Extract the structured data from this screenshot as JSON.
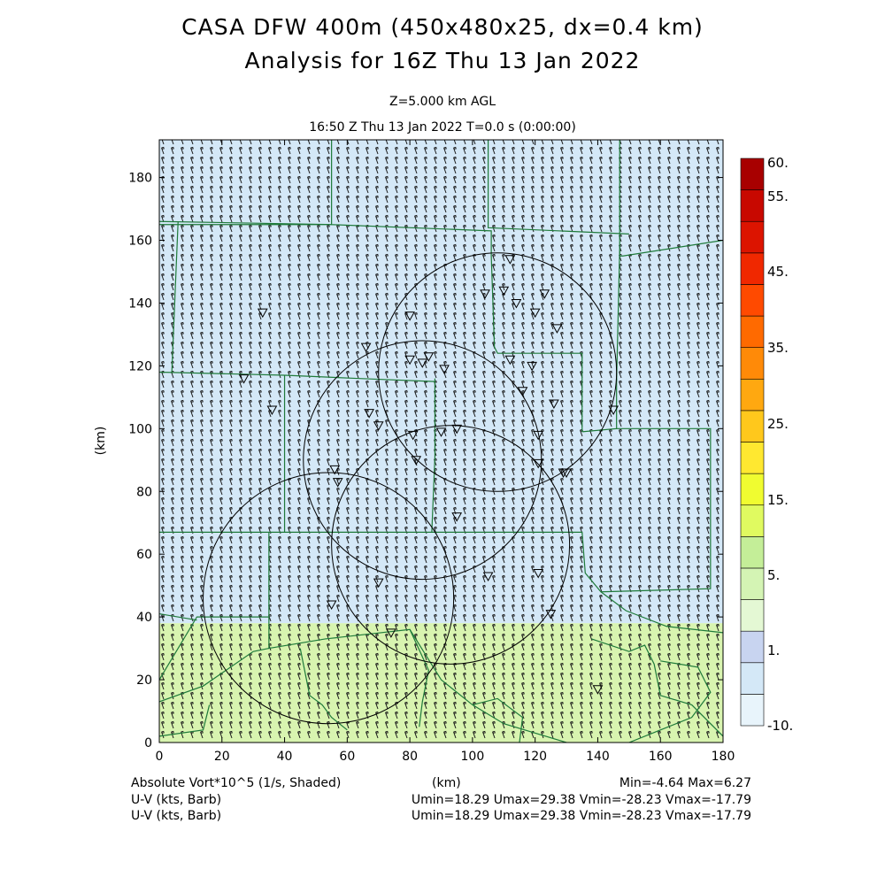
{
  "header": {
    "title_line1": "CASA DFW 400m (450x480x25, dx=0.4 km)",
    "title_line2": "Analysis for 16Z Thu 13 Jan 2022",
    "level": "Z=5.000 km AGL",
    "time": "16:50 Z Thu 13 Jan 2022    T=0.0 s (0:00:00)"
  },
  "footer": {
    "field_label": "Absolute Vort*10^5 (1/s, Shaded)",
    "xunit": "(km)",
    "minmax": "Min=-4.64 Max=6.27",
    "uv_label_1": "U-V (kts, Barb)",
    "uv_stats_1": "Umin=18.29 Umax=29.38 Vmin=-28.23 Vmax=-17.79",
    "uv_label_2": "U-V (kts, Barb)",
    "uv_stats_2": "Umin=18.29 Umax=29.38 Vmin=-28.23 Vmax=-17.79"
  },
  "chart_data": {
    "type": "heatmap",
    "xlabel": "",
    "ylabel": "(km)",
    "xlim": [
      0,
      180
    ],
    "ylim": [
      0,
      192
    ],
    "x_ticks": [
      "0",
      "20",
      "40",
      "60",
      "80",
      "100",
      "120",
      "140",
      "160",
      "180"
    ],
    "y_ticks": [
      "0",
      "20",
      "40",
      "60",
      "80",
      "100",
      "120",
      "140",
      "160",
      "180"
    ],
    "colorbar": {
      "levels": [
        "-10.",
        "1.",
        "5.",
        "15.",
        "25.",
        "35.",
        "45.",
        "55.",
        "60."
      ],
      "colors": [
        "#e8f4fb",
        "#d4e8f7",
        "#c8d4f0",
        "#e4f8d4",
        "#d4f4b4",
        "#c4ee98",
        "#e0fa60",
        "#f0fc30",
        "#ffe830",
        "#ffc81c",
        "#ffa810",
        "#ff8a08",
        "#ff6a00",
        "#ff4a00",
        "#f02800",
        "#dc1400",
        "#c80800",
        "#a80000"
      ]
    },
    "shading": [
      {
        "y_from": 38,
        "y_to": 192,
        "color": "#d4e8f7"
      },
      {
        "y_from": 0,
        "y_to": 38,
        "color": "#d8f4b0"
      }
    ],
    "wind": {
      "u_range": [
        18.29,
        29.38
      ],
      "v_range": [
        -28.23,
        -17.79
      ]
    },
    "radar_rings": [
      {
        "cx": 108,
        "cy": 118,
        "r": 38
      },
      {
        "cx": 84,
        "cy": 90,
        "r": 38
      },
      {
        "cx": 93,
        "cy": 63,
        "r": 38
      },
      {
        "cx": 54,
        "cy": 46,
        "r": 40
      }
    ],
    "station_markers": [
      [
        112,
        154
      ],
      [
        104,
        143
      ],
      [
        110,
        144
      ],
      [
        114,
        140
      ],
      [
        120,
        137
      ],
      [
        123,
        143
      ],
      [
        127,
        132
      ],
      [
        80,
        136
      ],
      [
        33,
        137
      ],
      [
        66,
        126
      ],
      [
        80,
        122
      ],
      [
        84,
        121
      ],
      [
        86,
        123
      ],
      [
        91,
        119
      ],
      [
        112,
        122
      ],
      [
        119,
        120
      ],
      [
        27,
        116
      ],
      [
        36,
        106
      ],
      [
        67,
        105
      ],
      [
        70,
        101
      ],
      [
        116,
        112
      ],
      [
        126,
        108
      ],
      [
        145,
        106
      ],
      [
        81,
        98
      ],
      [
        90,
        99
      ],
      [
        95,
        100
      ],
      [
        121,
        98
      ],
      [
        82,
        90
      ],
      [
        121,
        89
      ],
      [
        129,
        86
      ],
      [
        130,
        86
      ],
      [
        56,
        87
      ],
      [
        57,
        83
      ],
      [
        95,
        72
      ],
      [
        55,
        44
      ],
      [
        70,
        51
      ],
      [
        105,
        53
      ],
      [
        121,
        54
      ],
      [
        125,
        41
      ],
      [
        74,
        35
      ],
      [
        140,
        17
      ]
    ],
    "boundaries": [
      [
        [
          0,
          166
        ],
        [
          55,
          165
        ],
        [
          0,
          165
        ]
      ],
      [
        [
          6,
          166
        ],
        [
          4,
          118
        ]
      ],
      [
        [
          0,
          118
        ],
        [
          40,
          117
        ]
      ],
      [
        [
          55,
          192
        ],
        [
          55,
          165
        ],
        [
          106,
          163
        ],
        [
          106,
          155
        ],
        [
          107,
          126
        ],
        [
          108,
          124
        ],
        [
          135,
          124
        ],
        [
          135,
          116
        ],
        [
          135,
          99
        ]
      ],
      [
        [
          40,
          117
        ],
        [
          40,
          67
        ],
        [
          38,
          67
        ]
      ],
      [
        [
          38,
          67
        ],
        [
          0,
          67
        ]
      ],
      [
        [
          40,
          117
        ],
        [
          63,
          116
        ],
        [
          88,
          115
        ]
      ],
      [
        [
          88,
          116
        ],
        [
          88,
          97
        ],
        [
          88,
          91
        ],
        [
          87,
          67
        ]
      ],
      [
        [
          105,
          192
        ],
        [
          105,
          164
        ],
        [
          150,
          162
        ]
      ],
      [
        [
          147,
          192
        ],
        [
          147,
          155
        ],
        [
          148,
          155
        ],
        [
          180,
          160
        ]
      ],
      [
        [
          147,
          157
        ],
        [
          146,
          115
        ]
      ],
      [
        [
          146,
          116
        ],
        [
          146,
          100
        ],
        [
          135,
          99
        ]
      ],
      [
        [
          146,
          100
        ],
        [
          176,
          100
        ],
        [
          176,
          49
        ],
        [
          141,
          48
        ],
        [
          136,
          54
        ],
        [
          135,
          67
        ],
        [
          88,
          67
        ],
        [
          40,
          67
        ]
      ],
      [
        [
          141,
          48
        ],
        [
          149,
          42
        ],
        [
          162,
          37
        ],
        [
          180,
          35
        ]
      ],
      [
        [
          35,
          67
        ],
        [
          35,
          40
        ],
        [
          12,
          40
        ],
        [
          0,
          20
        ]
      ],
      [
        [
          0,
          41
        ],
        [
          12,
          39
        ]
      ],
      [
        [
          35,
          30
        ],
        [
          30,
          29
        ],
        [
          14,
          18
        ],
        [
          0,
          13
        ]
      ],
      [
        [
          35,
          40
        ],
        [
          35,
          30
        ],
        [
          53,
          33
        ],
        [
          80,
          36
        ],
        [
          86,
          23
        ],
        [
          84,
          13
        ],
        [
          83,
          5
        ]
      ],
      [
        [
          80,
          36
        ],
        [
          90,
          20
        ],
        [
          100,
          12
        ],
        [
          110,
          6
        ],
        [
          130,
          0
        ]
      ],
      [
        [
          100,
          12
        ],
        [
          108,
          14
        ],
        [
          116,
          8
        ],
        [
          115,
          0
        ]
      ],
      [
        [
          138,
          33
        ],
        [
          150,
          29
        ],
        [
          155,
          31
        ],
        [
          158,
          25
        ],
        [
          160,
          15
        ],
        [
          170,
          12
        ],
        [
          180,
          2
        ]
      ],
      [
        [
          160,
          26
        ],
        [
          172,
          24
        ],
        [
          176,
          16
        ],
        [
          170,
          8
        ],
        [
          160,
          4
        ],
        [
          150,
          0
        ]
      ],
      [
        [
          45,
          30
        ],
        [
          48,
          15
        ],
        [
          52,
          12
        ],
        [
          55,
          8
        ],
        [
          60,
          4
        ]
      ],
      [
        [
          16,
          12
        ],
        [
          14,
          4
        ],
        [
          0,
          2
        ]
      ]
    ]
  }
}
